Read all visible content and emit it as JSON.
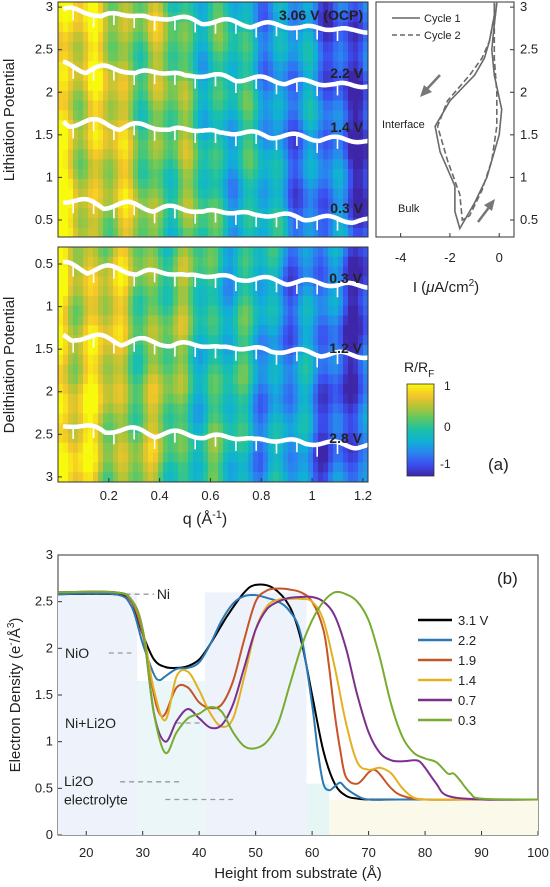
{
  "colormap": {
    "stops": [
      "#3e26a8",
      "#3b4ef0",
      "#2b84f0",
      "#10b0d6",
      "#1bc1a8",
      "#5cc864",
      "#b2c436",
      "#f5c52a",
      "#f8fa0d"
    ]
  },
  "panel_a": {
    "lith_ylabel": "Lithiation Potential",
    "delith_ylabel": "Delithiation Potential",
    "q_label_prefix": "q (Å",
    "q_label_sup": "-1",
    "q_label_suffix": ")",
    "current_label_prefix": "I (",
    "current_label_mu": "μ",
    "current_label_mid": "A/cm",
    "current_label_sup": "2",
    "current_label_suffix": ")",
    "colorbar_title_main": "R/R",
    "colorbar_title_sub": "F",
    "colorbar_ticks": [
      "1",
      "0",
      "-1"
    ],
    "panel_label": "(a)",
    "lith_curve_labels": [
      "3.06 V (OCP)",
      "2.2 V",
      "1.4 V",
      "0.3 V"
    ],
    "delith_curve_labels": [
      "0.3 V",
      "1.2 V",
      "2.8 V"
    ],
    "cv_legend": [
      "Cycle 1",
      "Cycle 2"
    ],
    "cv_annotations": [
      "Interface",
      "Bulk"
    ]
  },
  "chart_data": [
    {
      "type": "heatmap",
      "title": "",
      "xlabel": "q (Å-1)",
      "ylabel": "Lithiation Potential",
      "xlim": [
        0.0,
        1.22
      ],
      "ylim": [
        0.3,
        3.06
      ],
      "xticks": [
        "0.2",
        "0.4",
        "0.6",
        "0.8",
        "1",
        "1.2"
      ],
      "yticks": [
        "0.5",
        "1",
        "1.5",
        "2",
        "2.5",
        "3"
      ],
      "colorbar_range": [
        -1,
        1
      ],
      "colorbar_label": "R/RF",
      "reflectivity_curves": [
        "3.06 V (OCP)",
        "2.2 V",
        "1.4 V",
        "0.3 V"
      ]
    },
    {
      "type": "heatmap",
      "title": "",
      "xlabel": "q (Å-1)",
      "ylabel": "Delithiation Potential",
      "xlim": [
        0.0,
        1.22
      ],
      "ylim": [
        0.3,
        3.06
      ],
      "xticks": [
        "0.2",
        "0.4",
        "0.6",
        "0.8",
        "1",
        "1.2"
      ],
      "yticks": [
        "0.5",
        "1",
        "1.5",
        "2",
        "2.5",
        "3"
      ],
      "reflectivity_curves": [
        "0.3 V",
        "1.2 V",
        "2.8 V"
      ]
    },
    {
      "type": "line",
      "title": "",
      "xlabel": "I (μA/cm2)",
      "ylabel": "",
      "xlim": [
        -5,
        0.6
      ],
      "ylim": [
        0.3,
        3.06
      ],
      "xticks": [
        "-4",
        "-2",
        "0"
      ],
      "yticks": [
        "0.5",
        "1",
        "1.5",
        "2",
        "2.5",
        "3"
      ],
      "series": [
        {
          "name": "Cycle 1",
          "style": "solid",
          "x": [
            -0.2,
            -0.2,
            -0.4,
            -0.6,
            -1.0,
            -2.0,
            -2.6,
            -2.4,
            -1.8,
            -1.8,
            -1.6,
            -1.0,
            -0.5,
            -0.2,
            0.0,
            0.1,
            -0.2,
            -0.3,
            -0.2,
            -0.1
          ],
          "y": [
            3.05,
            2.9,
            2.6,
            2.4,
            2.2,
            1.9,
            1.6,
            1.3,
            0.9,
            0.6,
            0.4,
            0.7,
            1.0,
            1.3,
            1.5,
            1.8,
            2.2,
            2.5,
            2.8,
            3.05
          ]
        },
        {
          "name": "Cycle 2",
          "style": "dashed",
          "x": [
            -0.2,
            -0.2,
            -0.4,
            -0.7,
            -1.2,
            -2.1,
            -2.5,
            -2.1,
            -1.6,
            -1.5,
            -1.2,
            -0.7,
            -0.3,
            -0.1,
            -0.1,
            -0.2,
            -0.2,
            -0.1
          ],
          "y": [
            3.05,
            2.9,
            2.6,
            2.4,
            2.2,
            1.9,
            1.6,
            1.2,
            0.8,
            0.5,
            0.55,
            0.85,
            1.2,
            1.6,
            2.0,
            2.4,
            2.8,
            3.05
          ]
        }
      ],
      "annotations": [
        "Interface",
        "Bulk"
      ],
      "legend": "top"
    },
    {
      "type": "line",
      "title": "",
      "panel_label": "(b)",
      "xlabel": "Height from substrate (Å)",
      "ylabel": "Electron Density (e-/Å3)",
      "xlim": [
        15,
        100
      ],
      "ylim": [
        0,
        3
      ],
      "xticks": [
        20,
        30,
        40,
        50,
        60,
        70,
        80,
        90,
        100
      ],
      "yticks": [
        0,
        0.5,
        1,
        1.5,
        2,
        2.5,
        3
      ],
      "legend": "right",
      "reference_labels": [
        {
          "label": "Ni",
          "y": 2.58
        },
        {
          "label": "NiO",
          "y": 1.95
        },
        {
          "label": "Ni+Li2O",
          "y": 1.2
        },
        {
          "label": "Li2O",
          "y": 0.57
        },
        {
          "label": "electrolyte",
          "y": 0.38
        }
      ],
      "series": [
        {
          "name": "3.1 V",
          "color": "#000000",
          "x": [
            15,
            25,
            28,
            30,
            32,
            34,
            36,
            38,
            40,
            42,
            45,
            48,
            50,
            53,
            56,
            58,
            60,
            62,
            64,
            66,
            68,
            70,
            75,
            80,
            90,
            100
          ],
          "y": [
            2.58,
            2.58,
            2.5,
            2.15,
            1.88,
            1.8,
            1.79,
            1.81,
            1.88,
            2.05,
            2.35,
            2.6,
            2.68,
            2.65,
            2.45,
            2.1,
            1.5,
            0.9,
            0.55,
            0.42,
            0.39,
            0.38,
            0.38,
            0.38,
            0.38,
            0.38
          ]
        },
        {
          "name": "2.2",
          "color": "#2a78b4",
          "x": [
            15,
            25,
            28,
            30,
            32,
            33,
            34,
            36,
            38,
            40,
            42,
            44,
            46,
            48,
            50,
            52,
            54,
            56,
            58,
            60,
            61,
            62,
            63,
            64,
            65,
            66,
            68,
            70,
            75,
            80,
            90,
            100
          ],
          "y": [
            2.58,
            2.58,
            2.45,
            2.05,
            1.72,
            1.66,
            1.7,
            1.78,
            1.79,
            1.85,
            2.05,
            2.3,
            2.48,
            2.56,
            2.57,
            2.54,
            2.5,
            2.4,
            2.15,
            1.4,
            0.9,
            0.55,
            0.48,
            0.52,
            0.56,
            0.5,
            0.42,
            0.38,
            0.38,
            0.38,
            0.38,
            0.38
          ]
        },
        {
          "name": "1.9",
          "color": "#c55428",
          "x": [
            15,
            25,
            28,
            30,
            32,
            33,
            34,
            36,
            38,
            40,
            42,
            44,
            46,
            48,
            50,
            52,
            54,
            56,
            58,
            60,
            62,
            63,
            64,
            65,
            66,
            68,
            70,
            71,
            72,
            74,
            76,
            80,
            90,
            100
          ],
          "y": [
            2.6,
            2.6,
            2.5,
            2.15,
            1.5,
            1.3,
            1.3,
            1.58,
            1.58,
            1.42,
            1.36,
            1.4,
            1.65,
            2.1,
            2.5,
            2.62,
            2.64,
            2.63,
            2.6,
            2.5,
            2.2,
            1.8,
            1.3,
            0.9,
            0.62,
            0.55,
            0.67,
            0.7,
            0.65,
            0.5,
            0.42,
            0.38,
            0.38,
            0.38
          ]
        },
        {
          "name": "1.4",
          "color": "#e3b120",
          "x": [
            15,
            25,
            28,
            30,
            32,
            34,
            36,
            38,
            40,
            42,
            44,
            46,
            48,
            50,
            52,
            54,
            56,
            58,
            60,
            62,
            64,
            66,
            68,
            70,
            72,
            74,
            76,
            78,
            80,
            82,
            90,
            100
          ],
          "y": [
            2.6,
            2.6,
            2.52,
            2.2,
            1.55,
            1.23,
            1.7,
            1.75,
            1.55,
            1.3,
            1.16,
            1.25,
            1.7,
            2.2,
            2.45,
            2.52,
            2.53,
            2.53,
            2.5,
            2.3,
            1.8,
            1.2,
            0.78,
            0.7,
            0.72,
            0.66,
            0.5,
            0.4,
            0.38,
            0.38,
            0.38,
            0.38
          ]
        },
        {
          "name": "0.7",
          "color": "#7e2f8e",
          "x": [
            15,
            25,
            28,
            30,
            32,
            34,
            36,
            38,
            40,
            42,
            44,
            46,
            48,
            50,
            52,
            54,
            56,
            58,
            60,
            62,
            64,
            66,
            68,
            70,
            72,
            74,
            76,
            78,
            79,
            80,
            82,
            84,
            90,
            100
          ],
          "y": [
            2.6,
            2.6,
            2.52,
            2.2,
            1.3,
            1.0,
            1.22,
            1.35,
            1.25,
            1.15,
            1.18,
            1.4,
            1.8,
            2.2,
            2.42,
            2.5,
            2.54,
            2.55,
            2.55,
            2.5,
            2.35,
            2.0,
            1.5,
            1.1,
            0.88,
            0.8,
            0.79,
            0.8,
            0.79,
            0.72,
            0.55,
            0.42,
            0.38,
            0.38
          ]
        },
        {
          "name": "0.3",
          "color": "#77ac30",
          "x": [
            15,
            25,
            28,
            30,
            32,
            34,
            36,
            38,
            40,
            42,
            44,
            46,
            48,
            50,
            52,
            54,
            56,
            58,
            60,
            62,
            64,
            66,
            68,
            70,
            72,
            74,
            76,
            78,
            80,
            82,
            84,
            85,
            86,
            88,
            90,
            100
          ],
          "y": [
            2.6,
            2.6,
            2.52,
            2.2,
            1.3,
            0.88,
            1.1,
            1.25,
            1.3,
            1.37,
            1.32,
            1.1,
            0.95,
            0.93,
            1.0,
            1.2,
            1.6,
            2.0,
            2.3,
            2.5,
            2.6,
            2.58,
            2.5,
            2.3,
            1.9,
            1.4,
            1.05,
            0.88,
            0.82,
            0.78,
            0.66,
            0.66,
            0.6,
            0.45,
            0.39,
            0.38
          ]
        }
      ]
    }
  ]
}
